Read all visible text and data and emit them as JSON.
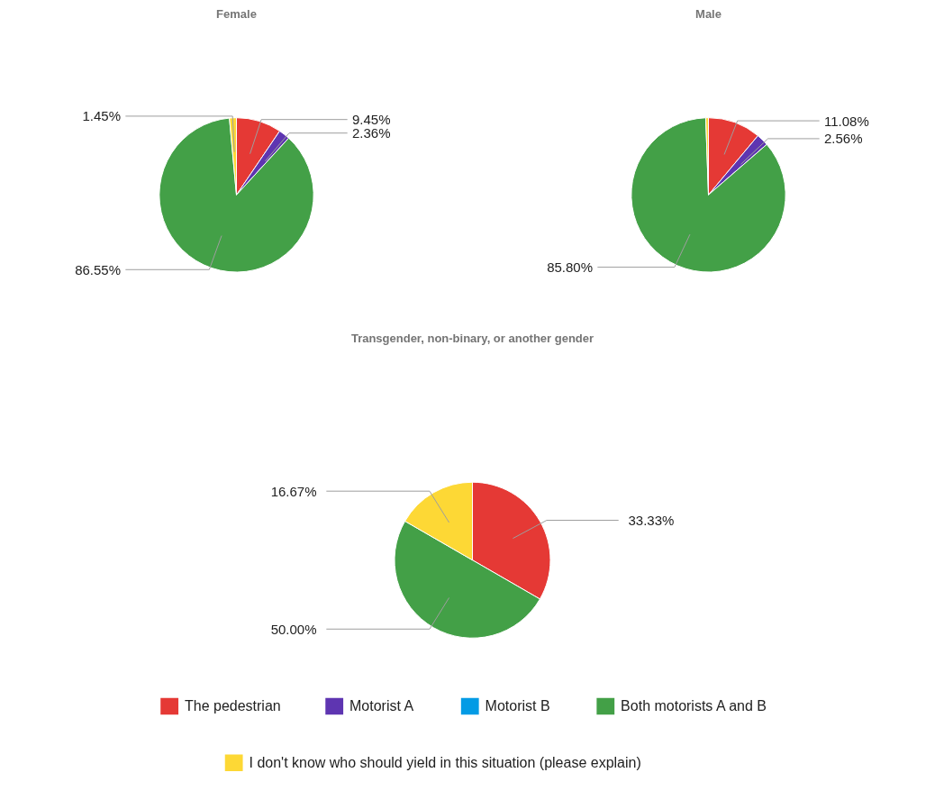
{
  "chart_data": [
    {
      "type": "pie",
      "title": "Female",
      "categories": [
        "The pedestrian",
        "Motorist A",
        "Motorist B",
        "Both motorists A and B",
        "I don't know who should yield in this situation (please explain)"
      ],
      "values": [
        9.45,
        2.36,
        0,
        86.55,
        1.45
      ],
      "value_labels": [
        "9.45%",
        "2.36%",
        null,
        "86.55%",
        "1.45%"
      ],
      "colors": [
        "#e53935",
        "#5e35b1",
        "#039be5",
        "#43a047",
        "#fdd835"
      ],
      "legend": "bottom"
    },
    {
      "type": "pie",
      "title": "Male",
      "categories": [
        null,
        null,
        null,
        null,
        null
      ],
      "values": [
        11.08,
        2.56,
        0,
        85.8,
        0.56
      ],
      "value_labels": [
        "11.08%",
        "2.56%",
        null,
        "85.80%",
        null
      ],
      "colors": [
        "#e53935",
        "#5e35b1",
        "#039be5",
        "#43a047",
        "#fdd835"
      ]
    },
    {
      "type": "pie",
      "title": "Transgender, non-binary, or another gender",
      "categories": [
        null,
        null,
        null,
        null,
        null
      ],
      "values": [
        33.33,
        0,
        0,
        50.0,
        16.67
      ],
      "value_labels": [
        "33.33%",
        null,
        null,
        "50.00%",
        "16.67%"
      ],
      "colors": [
        "#e53935",
        "#5e35b1",
        "#039be5",
        "#43a047",
        "#fdd835"
      ]
    }
  ]
}
